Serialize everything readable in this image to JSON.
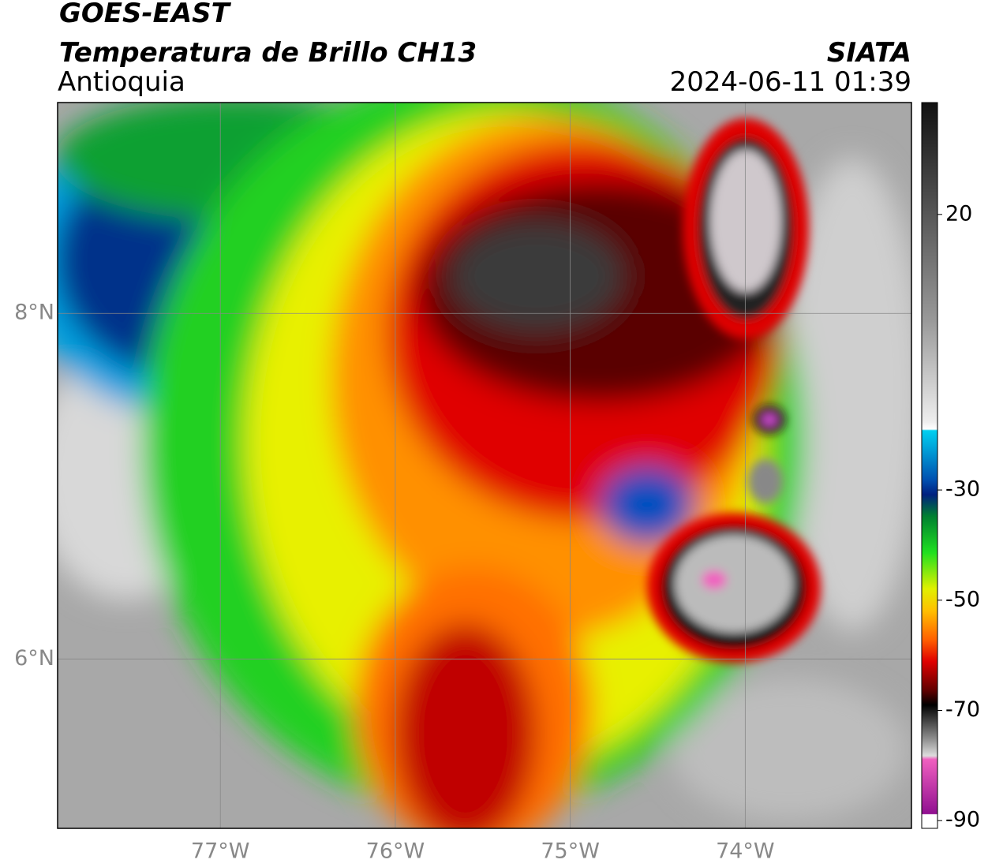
{
  "header": {
    "title": "GOES-EAST",
    "subtitle": "Temperatura de Brillo CH13",
    "region": "Antioquia",
    "source": "SIATA",
    "timestamp": "2024-06-11 01:39"
  },
  "map": {
    "lonlim": [
      -77.93,
      -73.05
    ],
    "latlim": [
      5.02,
      9.22
    ],
    "lonticks": [
      {
        "value": -77,
        "label": "77°W"
      },
      {
        "value": -76,
        "label": "76°W"
      },
      {
        "value": -75,
        "label": "75°W"
      },
      {
        "value": -74,
        "label": "74°W"
      }
    ],
    "latticks": [
      {
        "value": 8,
        "label": "8°N"
      },
      {
        "value": 6,
        "label": "6°N"
      }
    ],
    "grid": true
  },
  "colorbar": {
    "lim": [
      -91.4,
      40.3
    ],
    "ticks": [
      20,
      -30,
      -50,
      -70,
      -90
    ]
  }
}
